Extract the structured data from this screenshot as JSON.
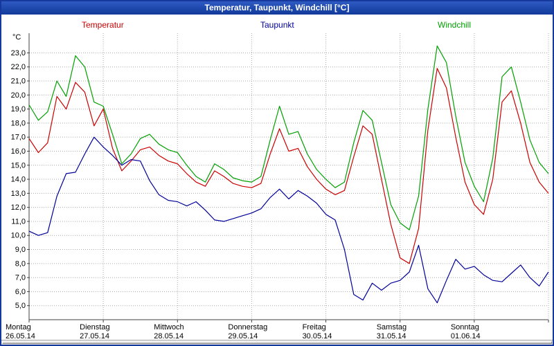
{
  "window": {
    "title": "Temperatur, Taupunkt, Windchill [°C]"
  },
  "chart_data": {
    "type": "line",
    "title": "Temperatur, Taupunkt, Windchill [°C]",
    "y_unit": "°C",
    "ylim": [
      4.0,
      24.4
    ],
    "yticks": [
      5,
      6,
      7,
      8,
      9,
      10,
      11,
      12,
      13,
      14,
      15,
      16,
      17,
      18,
      19,
      20,
      21,
      22,
      23
    ],
    "ytick_decimal_separator": ",",
    "x_interval_hours": 3,
    "x_points_per_day": 8,
    "grid": true,
    "legend_position": "top",
    "days": [
      {
        "day": "Montag",
        "date": "26.05.14"
      },
      {
        "day": "Dienstag",
        "date": "27.05.14"
      },
      {
        "day": "Mittwoch",
        "date": "28.05.14"
      },
      {
        "day": "Donnerstag",
        "date": "29.05.14"
      },
      {
        "day": "Freitag",
        "date": "30.05.14"
      },
      {
        "day": "Samstag",
        "date": "31.05.14"
      },
      {
        "day": "Sonntag",
        "date": "01.06.14"
      }
    ],
    "series": [
      {
        "name": "Temperatur",
        "color": "#cc0000",
        "values": [
          16.9,
          15.9,
          16.6,
          19.9,
          19.0,
          20.9,
          20.2,
          17.8,
          19.0,
          16.2,
          14.6,
          15.3,
          16.1,
          16.3,
          15.7,
          15.3,
          15.1,
          14.4,
          13.8,
          13.5,
          14.6,
          14.2,
          13.7,
          13.5,
          13.4,
          13.7,
          15.8,
          17.6,
          16.0,
          16.2,
          14.9,
          14.0,
          13.3,
          12.9,
          13.2,
          15.6,
          17.8,
          17.2,
          14.0,
          10.8,
          8.4,
          8.0,
          10.5,
          17.5,
          21.9,
          20.5,
          17.0,
          13.8,
          12.2,
          11.5,
          14.0,
          19.5,
          20.3,
          18.0,
          15.2,
          13.8,
          13.0
        ]
      },
      {
        "name": "Taupunkt",
        "color": "#000099",
        "values": [
          10.3,
          10.0,
          10.2,
          12.8,
          14.4,
          14.5,
          15.8,
          17.0,
          16.3,
          15.7,
          15.0,
          15.4,
          15.3,
          13.9,
          12.9,
          12.5,
          12.4,
          12.1,
          12.4,
          11.8,
          11.1,
          11.0,
          11.2,
          11.4,
          11.6,
          11.9,
          12.7,
          13.3,
          12.6,
          13.2,
          12.8,
          12.3,
          11.5,
          11.1,
          9.0,
          5.8,
          5.4,
          6.6,
          6.1,
          6.6,
          6.8,
          7.4,
          9.3,
          6.2,
          5.2,
          6.8,
          8.3,
          7.6,
          7.8,
          7.2,
          6.8,
          6.7,
          7.3,
          7.9,
          7.0,
          6.4,
          7.4
        ]
      },
      {
        "name": "Windchill",
        "color": "#00a000",
        "values": [
          19.3,
          18.2,
          18.8,
          21.0,
          19.9,
          22.8,
          22.0,
          19.5,
          19.2,
          17.2,
          15.1,
          15.8,
          16.9,
          17.2,
          16.5,
          16.1,
          15.9,
          15.0,
          14.2,
          13.8,
          15.1,
          14.7,
          14.1,
          13.9,
          13.8,
          14.2,
          16.8,
          19.2,
          17.2,
          17.4,
          15.8,
          14.7,
          14.0,
          13.4,
          13.8,
          16.6,
          18.9,
          18.2,
          15.2,
          12.2,
          10.9,
          10.4,
          12.8,
          19.0,
          23.5,
          22.3,
          18.5,
          15.2,
          13.5,
          12.4,
          15.5,
          21.3,
          22.0,
          19.5,
          16.8,
          15.2,
          14.4
        ]
      }
    ]
  }
}
